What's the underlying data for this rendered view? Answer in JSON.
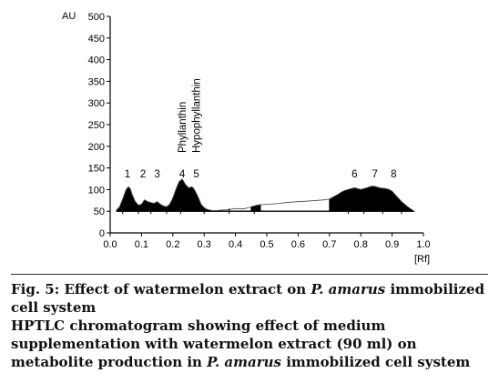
{
  "chart_data": {
    "type": "area",
    "ylabel": "AU",
    "xlabel": "[Rf]",
    "xlim": [
      0.0,
      1.0
    ],
    "ylim": [
      0,
      500
    ],
    "x_ticks": [
      "0.0",
      "0.1",
      "0.2",
      "0.3",
      "0.4",
      "0.5",
      "0.6",
      "0.7",
      "0.8",
      "0.9",
      "1.0"
    ],
    "y_ticks": [
      "0",
      "50",
      "100",
      "150",
      "200",
      "250",
      "300",
      "350",
      "400",
      "450",
      "500"
    ],
    "baseline": 50,
    "trace": {
      "x": [
        0.02,
        0.03,
        0.04,
        0.05,
        0.055,
        0.06,
        0.065,
        0.07,
        0.08,
        0.09,
        0.1,
        0.11,
        0.12,
        0.13,
        0.14,
        0.15,
        0.16,
        0.17,
        0.18,
        0.19,
        0.2,
        0.21,
        0.22,
        0.23,
        0.24,
        0.25,
        0.26,
        0.265,
        0.27,
        0.28,
        0.29,
        0.3,
        0.31,
        0.32,
        0.33,
        0.34,
        0.35,
        0.36,
        0.37,
        0.38,
        0.39,
        0.4,
        0.41,
        0.42,
        0.43,
        0.44,
        0.45,
        0.46,
        0.47,
        0.48,
        0.5,
        0.52,
        0.54,
        0.56,
        0.58,
        0.6,
        0.62,
        0.64,
        0.66,
        0.68,
        0.7,
        0.71,
        0.72,
        0.73,
        0.74,
        0.75,
        0.76,
        0.77,
        0.78,
        0.79,
        0.8,
        0.81,
        0.82,
        0.83,
        0.84,
        0.85,
        0.86,
        0.87,
        0.88,
        0.89,
        0.9,
        0.91,
        0.92,
        0.93,
        0.94,
        0.95,
        0.96,
        0.97
      ],
      "y": [
        52,
        60,
        78,
        98,
        104,
        106,
        100,
        88,
        72,
        64,
        66,
        76,
        72,
        70,
        68,
        72,
        66,
        62,
        60,
        66,
        80,
        100,
        118,
        124,
        112,
        104,
        106,
        104,
        98,
        84,
        66,
        58,
        54,
        52,
        51,
        51,
        52,
        53,
        53,
        54,
        55,
        56,
        56,
        55,
        56,
        58,
        60,
        62,
        64,
        65,
        66,
        67,
        68,
        70,
        71,
        72,
        73,
        74,
        75,
        76,
        78,
        82,
        86,
        90,
        95,
        98,
        100,
        102,
        104,
        102,
        100,
        102,
        104,
        107,
        108,
        106,
        104,
        103,
        102,
        100,
        96,
        88,
        80,
        72,
        66,
        60,
        55,
        50
      ]
    },
    "filled_regions": [
      [
        0.02,
        0.35
      ],
      [
        0.45,
        0.48
      ],
      [
        0.7,
        0.97
      ]
    ],
    "peaks": [
      {
        "label": "1",
        "x": 0.055
      },
      {
        "label": "2",
        "x": 0.105
      },
      {
        "label": "3",
        "x": 0.15
      },
      {
        "label": "4",
        "x": 0.23
      },
      {
        "label": "5",
        "x": 0.275
      },
      {
        "label": "6",
        "x": 0.78
      },
      {
        "label": "7",
        "x": 0.845
      },
      {
        "label": "8",
        "x": 0.905
      }
    ],
    "annotations": [
      {
        "text": "Phyllanthin",
        "x": 0.23
      },
      {
        "text": "Hypophyllanthin",
        "x": 0.275
      }
    ],
    "markers_x": [
      0.04,
      0.09,
      0.13,
      0.18,
      0.225,
      0.3,
      0.38,
      0.46,
      0.76,
      0.81,
      0.87,
      0.93
    ]
  },
  "caption": {
    "line1_pre": "Fig. 5: Effect of watermelon extract on ",
    "line1_species": "P. amarus",
    "line1_post": " immobilized cell system",
    "line2": "HPTLC chromatogram showing effect of medium supplementation with watermelon extract (90 ml) on metabolite production in ",
    "line2_species": "P. amarus",
    "line2_post": " immobilized cell system"
  }
}
